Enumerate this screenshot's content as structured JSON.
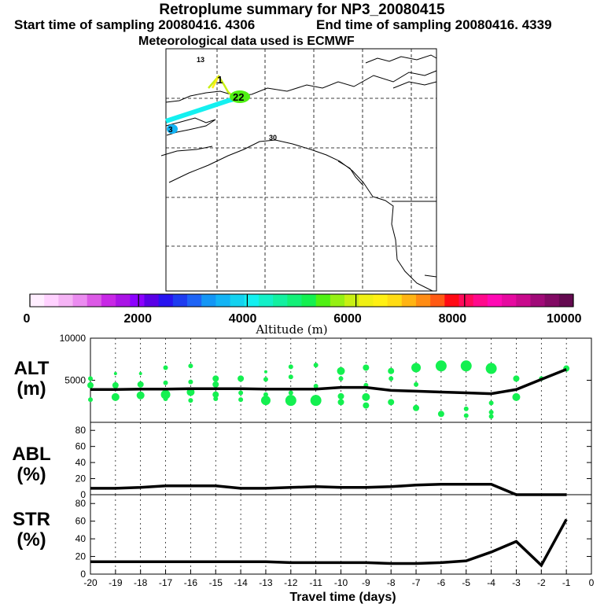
{
  "header": {
    "title": "Retroplume summary for NP3_20080415",
    "start_label": "Start time of sampling 20080416.  4306",
    "end_label": "End time of sampling 20080416.  4339",
    "met_label": "Meteorological data used is ECMWF"
  },
  "colorbar": {
    "tick_labels": [
      "0",
      "2000",
      "4000",
      "6000",
      "8000",
      "10000"
    ],
    "axis_label": "Altitude (m)",
    "colors": [
      "#ffeeff",
      "#ffd2ff",
      "#f5b4f5",
      "#eb8cf0",
      "#dc5ae6",
      "#c828e6",
      "#aa14e6",
      "#8c00ff",
      "#5a00e6",
      "#2814f0",
      "#1e3cf0",
      "#1e64f5",
      "#1496f5",
      "#14b4f5",
      "#14d2f0",
      "#14f0f0",
      "#14f0c8",
      "#14f0a0",
      "#14f078",
      "#14f050",
      "#50f014",
      "#96f014",
      "#c8f014",
      "#f0f014",
      "#fff014",
      "#ffdc14",
      "#ffb414",
      "#ff8c14",
      "#ff5a14",
      "#ff0a14",
      "#ff0a5a",
      "#ff0a8c",
      "#ff0ab4",
      "#e60aa0",
      "#c80a8c",
      "#a00a78",
      "#820a64",
      "#640a50"
    ]
  },
  "map": {
    "labels": [
      {
        "text": "13",
        "color": "#f0f014"
      },
      {
        "text": "1",
        "color": "#c8f014"
      },
      {
        "text": "22",
        "color": "#50f014"
      },
      {
        "text": "3",
        "color": "#14b4f5"
      },
      {
        "text": "30",
        "color": "#50f014"
      }
    ]
  },
  "panels": {
    "alt": {
      "label_top": "ALT",
      "label_bottom": "(m)"
    },
    "abl": {
      "label_top": "ABL",
      "label_bottom": "(%)"
    },
    "str": {
      "label_top": "STR",
      "label_bottom": "(%)"
    }
  },
  "chart_data": [
    {
      "type": "line",
      "name": "ALT",
      "x": [
        -20,
        -19,
        -18,
        -17,
        -16,
        -15,
        -14,
        -13,
        -12,
        -11,
        -10,
        -9,
        -8,
        -7,
        -6,
        -5,
        -4,
        -3,
        -2,
        -1
      ],
      "values": [
        3900,
        3900,
        3950,
        3950,
        4000,
        4000,
        4000,
        3950,
        3950,
        3950,
        4150,
        4150,
        3800,
        3700,
        3600,
        3500,
        3400,
        3900,
        5100,
        6300
      ],
      "ylim": [
        0,
        10000
      ],
      "yticks": [
        "5000",
        "10000"
      ],
      "xlabel": "Travel time (days)",
      "ylabel": "ALT (m)",
      "scatter_color": "#14f050",
      "scatter": [
        [
          -20,
          5200,
          3
        ],
        [
          -20,
          4400,
          4
        ],
        [
          -20,
          2700,
          3
        ],
        [
          -19,
          5800,
          2
        ],
        [
          -19,
          4400,
          4
        ],
        [
          -19,
          3000,
          5
        ],
        [
          -18,
          5800,
          2
        ],
        [
          -18,
          4500,
          4
        ],
        [
          -18,
          3200,
          5
        ],
        [
          -17,
          6500,
          3
        ],
        [
          -17,
          4700,
          3
        ],
        [
          -17,
          3300,
          6
        ],
        [
          -17,
          2800,
          3
        ],
        [
          -16,
          6700,
          3
        ],
        [
          -16,
          4800,
          3
        ],
        [
          -16,
          3600,
          5
        ],
        [
          -16,
          2600,
          3
        ],
        [
          -15,
          5200,
          4
        ],
        [
          -15,
          4500,
          4
        ],
        [
          -15,
          3300,
          4
        ],
        [
          -15,
          2800,
          3
        ],
        [
          -14,
          5200,
          4
        ],
        [
          -14,
          3500,
          3
        ],
        [
          -14,
          2700,
          3
        ],
        [
          -13,
          6000,
          2
        ],
        [
          -13,
          5100,
          3
        ],
        [
          -13,
          3300,
          3
        ],
        [
          -13,
          2600,
          6
        ],
        [
          -12,
          6600,
          3
        ],
        [
          -12,
          5400,
          3
        ],
        [
          -12,
          3500,
          3
        ],
        [
          -12,
          2600,
          7
        ],
        [
          -11,
          6800,
          3
        ],
        [
          -11,
          4300,
          3
        ],
        [
          -11,
          2600,
          7
        ],
        [
          -10,
          6100,
          5
        ],
        [
          -10,
          5200,
          3
        ],
        [
          -10,
          3100,
          4
        ],
        [
          -10,
          2400,
          4
        ],
        [
          -9,
          6500,
          4
        ],
        [
          -9,
          4400,
          3
        ],
        [
          -9,
          3000,
          5
        ],
        [
          -9,
          2000,
          4
        ],
        [
          -8,
          6100,
          4
        ],
        [
          -8,
          5200,
          3
        ],
        [
          -8,
          2400,
          4
        ],
        [
          -7,
          6500,
          6
        ],
        [
          -7,
          4500,
          3
        ],
        [
          -7,
          1700,
          4
        ],
        [
          -6,
          6700,
          7
        ],
        [
          -6,
          1000,
          4
        ],
        [
          -5,
          6700,
          7
        ],
        [
          -5,
          1600,
          3
        ],
        [
          -5,
          800,
          3
        ],
        [
          -4,
          6400,
          7
        ],
        [
          -4,
          2300,
          3
        ],
        [
          -4,
          1200,
          3
        ],
        [
          -4,
          700,
          3
        ],
        [
          -3,
          5200,
          4
        ],
        [
          -3,
          3000,
          5
        ],
        [
          -2,
          5200,
          3
        ],
        [
          -1,
          6400,
          4
        ]
      ]
    },
    {
      "type": "line",
      "name": "ABL",
      "x": [
        -20,
        -19,
        -18,
        -17,
        -16,
        -15,
        -14,
        -13,
        -12,
        -11,
        -10,
        -9,
        -8,
        -7,
        -6,
        -5,
        -4,
        -3,
        -2,
        -1
      ],
      "values": [
        8,
        8,
        9,
        11,
        11,
        11,
        8,
        8,
        9,
        10,
        9,
        9,
        10,
        12,
        13,
        13,
        13,
        0,
        0,
        0
      ],
      "ylim": [
        0,
        90
      ],
      "yticks": [
        "0",
        "20",
        "40",
        "60",
        "80"
      ],
      "ylabel": "ABL (%)"
    },
    {
      "type": "line",
      "name": "STR",
      "x": [
        -20,
        -19,
        -18,
        -17,
        -16,
        -15,
        -14,
        -13,
        -12,
        -11,
        -10,
        -9,
        -8,
        -7,
        -6,
        -5,
        -4,
        -3,
        -2,
        -1
      ],
      "values": [
        14,
        14,
        14,
        14,
        14,
        14,
        14,
        14,
        13,
        13,
        13,
        13,
        12,
        12,
        13,
        15,
        25,
        37,
        10,
        62
      ],
      "ylim": [
        0,
        90
      ],
      "yticks": [
        "0",
        "20",
        "40",
        "60",
        "80"
      ],
      "ylabel": "STR (%)"
    }
  ],
  "xaxis": {
    "ticks": [
      "-20",
      "-19",
      "-18",
      "-17",
      "-16",
      "-15",
      "-14",
      "-13",
      "-12",
      "-11",
      "-10",
      "-9",
      "-8",
      "-7",
      "-6",
      "-5",
      "-4",
      "-3",
      "-2",
      "-1",
      "0"
    ],
    "label": "Travel time (days)"
  }
}
